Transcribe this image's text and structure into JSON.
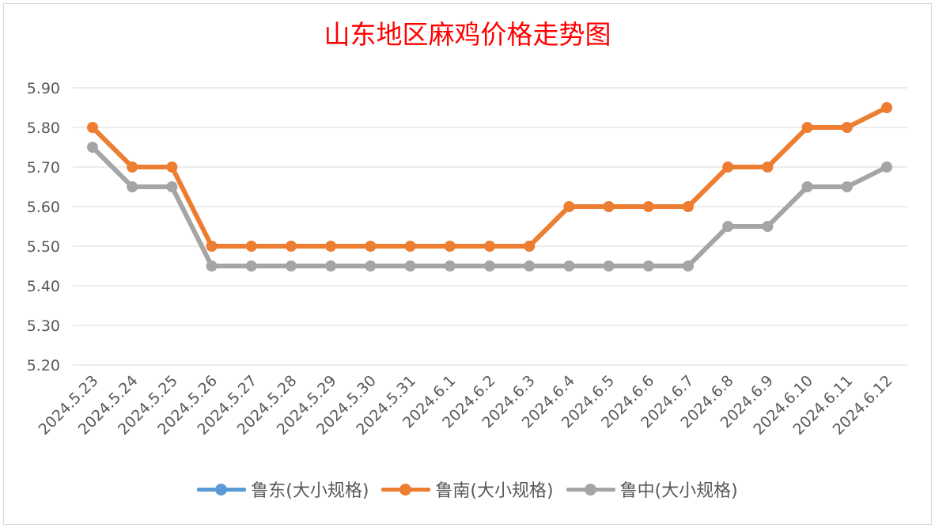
{
  "chart_data": {
    "type": "line",
    "title": "山东地区麻鸡价格走势图",
    "xlabel": "",
    "ylabel": "",
    "ylim": [
      5.2,
      5.9
    ],
    "ytick_labels": [
      "5.20",
      "5.30",
      "5.40",
      "5.50",
      "5.60",
      "5.70",
      "5.80",
      "5.90"
    ],
    "yticks": [
      5.2,
      5.3,
      5.4,
      5.5,
      5.6,
      5.7,
      5.8,
      5.9
    ],
    "categories": [
      "2024.5.23",
      "2024.5.24",
      "2024.5.25",
      "2024.5.26",
      "2024.5.27",
      "2024.5.28",
      "2024.5.29",
      "2024.5.30",
      "2024.5.31",
      "2024.6.1",
      "2024.6.2",
      "2024.6.3",
      "2024.6.4",
      "2024.6.5",
      "2024.6.6",
      "2024.6.7",
      "2024.6.8",
      "2024.6.9",
      "2024.6.10",
      "2024.6.11",
      "2024.6.12"
    ],
    "grid": true,
    "legend_position": "bottom",
    "series": [
      {
        "name": "鲁东(大小规格)",
        "color": "#5b9bd5",
        "values": [
          null,
          null,
          null,
          null,
          null,
          null,
          null,
          null,
          null,
          null,
          null,
          null,
          null,
          null,
          null,
          null,
          null,
          null,
          null,
          null,
          null
        ]
      },
      {
        "name": "鲁南(大小规格)",
        "color": "#ed7d31",
        "values": [
          5.8,
          5.7,
          5.7,
          5.5,
          5.5,
          5.5,
          5.5,
          5.5,
          5.5,
          5.5,
          5.5,
          5.5,
          5.6,
          5.6,
          5.6,
          5.6,
          5.7,
          5.7,
          5.8,
          5.8,
          5.85
        ]
      },
      {
        "name": "鲁中(大小规格)",
        "color": "#a5a5a5",
        "values": [
          5.75,
          5.65,
          5.65,
          5.45,
          5.45,
          5.45,
          5.45,
          5.45,
          5.45,
          5.45,
          5.45,
          5.45,
          5.45,
          5.45,
          5.45,
          5.45,
          5.55,
          5.55,
          5.65,
          5.65,
          5.7
        ]
      }
    ]
  }
}
